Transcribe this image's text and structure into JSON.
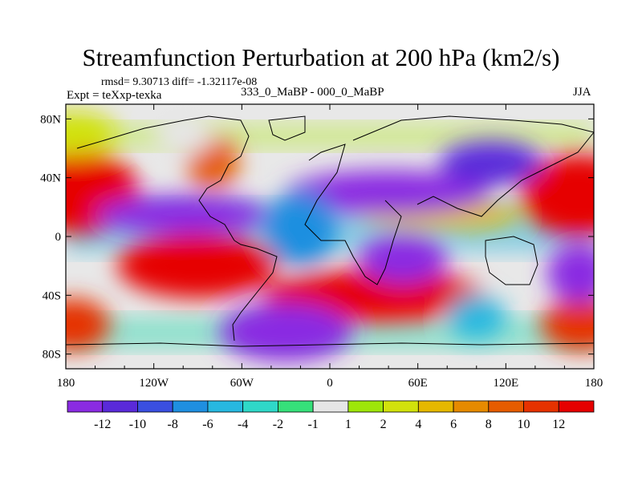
{
  "title": "Streamfunction Perturbation at 200 hPa (km2/s)",
  "stats": "rmsd= 9.30713  diff= -1.32117e-08",
  "experiment": "Expt = teXxp-texka",
  "cases": "333_0_MaBP - 000_0_MaBP",
  "season": "JJA",
  "lon_labels": [
    "180",
    "120W",
    "60W",
    "0",
    "60E",
    "120E",
    "180"
  ],
  "lat_labels": [
    "80N",
    "40N",
    "0",
    "40S",
    "80S"
  ],
  "colorbar": {
    "levels": [
      "-12",
      "-10",
      "-8",
      "-6",
      "-4",
      "-2",
      "-1",
      "1",
      "2",
      "4",
      "6",
      "8",
      "10",
      "12"
    ],
    "colors": [
      "#8a2be2",
      "#5a2ad9",
      "#3a4fe0",
      "#1f8fe0",
      "#27b8e0",
      "#2fd8c8",
      "#36e07a",
      "#e6e6e6",
      "#9ee60a",
      "#d2e20c",
      "#e6b800",
      "#e68a00",
      "#e65c00",
      "#e63200",
      "#e60000"
    ]
  },
  "map_data": {
    "projection": "cylindrical-equidistant",
    "lon_range": [
      -180,
      180
    ],
    "lat_range": [
      -90,
      90
    ],
    "blobs": [
      {
        "lon": -170,
        "lat": 30,
        "rx": 40,
        "ry": 28,
        "level": 14
      },
      {
        "lon": 170,
        "lat": 28,
        "rx": 40,
        "ry": 28,
        "level": 14
      },
      {
        "lon": -90,
        "lat": -20,
        "rx": 55,
        "ry": 22,
        "level": 14
      },
      {
        "lon": 30,
        "lat": -40,
        "rx": 75,
        "ry": 18,
        "level": 14
      },
      {
        "lon": -80,
        "lat": 50,
        "rx": 18,
        "ry": 18,
        "level": 12
      },
      {
        "lon": 75,
        "lat": 15,
        "rx": 55,
        "ry": 10,
        "level": 10
      },
      {
        "lon": -175,
        "lat": -60,
        "rx": 25,
        "ry": 18,
        "level": 13
      },
      {
        "lon": 172,
        "lat": -60,
        "rx": 28,
        "ry": 18,
        "level": 13
      },
      {
        "lon": -175,
        "lat": 70,
        "rx": 30,
        "ry": 15,
        "level": 9
      },
      {
        "lon": -30,
        "lat": -65,
        "rx": 45,
        "ry": 20,
        "level": 0
      },
      {
        "lon": 50,
        "lat": -15,
        "rx": 30,
        "ry": 17,
        "level": 0
      },
      {
        "lon": -100,
        "lat": 15,
        "rx": 60,
        "ry": 13,
        "level": 0
      },
      {
        "lon": 40,
        "lat": 30,
        "rx": 70,
        "ry": 15,
        "level": 0
      },
      {
        "lon": 110,
        "lat": 50,
        "rx": 35,
        "ry": 15,
        "level": 1
      },
      {
        "lon": 170,
        "lat": -25,
        "rx": 22,
        "ry": 20,
        "level": 0
      },
      {
        "lon": 100,
        "lat": -55,
        "rx": 20,
        "ry": 15,
        "level": 4
      },
      {
        "lon": -20,
        "lat": 5,
        "rx": 25,
        "ry": 25,
        "level": 3
      },
      {
        "lon": -100,
        "lat": 70,
        "rx": 20,
        "ry": 15,
        "level": 7
      }
    ]
  }
}
